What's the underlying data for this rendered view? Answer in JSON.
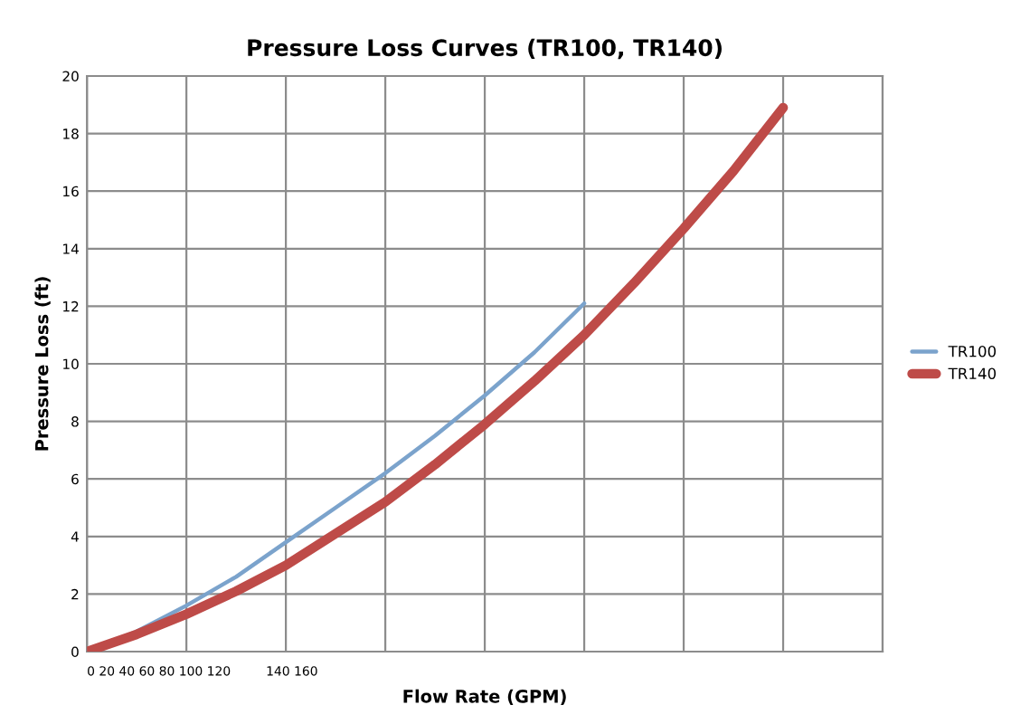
{
  "chart_data": {
    "type": "line",
    "title": "Pressure Loss Curves (TR100, TR140)",
    "xlabel": "Flow Rate (GPM)",
    "ylabel": "Pressure Loss (ft)",
    "categories": [
      null,
      null,
      null,
      null,
      null,
      null,
      null,
      null,
      null,
      null,
      null,
      null,
      null,
      null,
      null
    ],
    "series": [
      {
        "name": "TR100",
        "color": "#7ba3cc",
        "values": [
          0,
          0.7,
          1.6,
          2.6,
          3.8,
          5.0,
          6.2,
          7.5,
          8.9,
          10.4,
          12.1,
          null,
          null,
          null,
          null
        ]
      },
      {
        "name": "TR140",
        "color": "#be4b48",
        "values": [
          0,
          0.6,
          1.3,
          2.1,
          3.0,
          4.1,
          5.2,
          6.5,
          7.9,
          9.4,
          11.0,
          12.8,
          14.7,
          16.7,
          18.9
        ]
      }
    ],
    "annotations": [
      "0 20 40 60 80 100 120",
      "140 160"
    ],
    "ylim": [
      0,
      20
    ],
    "yticks": [
      0,
      2,
      4,
      6,
      8,
      10,
      12,
      14,
      16,
      18,
      20
    ],
    "grid": true,
    "legend": "right",
    "marker": "none",
    "line_style": "solid"
  }
}
